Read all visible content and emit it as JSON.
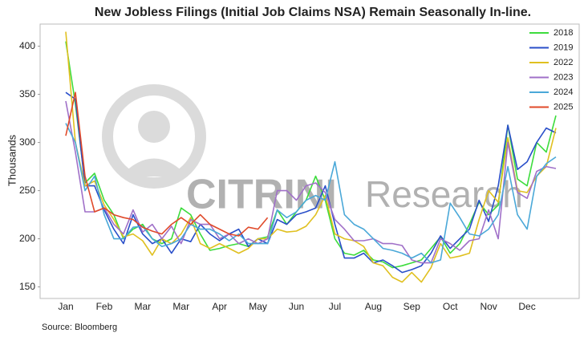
{
  "chart_data": {
    "type": "line",
    "title": "New Jobless Filings (Initial Job Claims NSA) Remain Seasonally In-line.",
    "y_label": "Thousands",
    "source": "Source: Bloomberg",
    "watermark": [
      "CITRINI",
      "Research"
    ],
    "categories": [
      "Jan",
      null,
      null,
      null,
      "Feb",
      null,
      null,
      null,
      "Mar",
      null,
      null,
      null,
      "Mar",
      null,
      null,
      null,
      "Apr",
      null,
      null,
      null,
      "May",
      null,
      null,
      null,
      "Jun",
      null,
      null,
      null,
      "Jul",
      null,
      null,
      null,
      "Aug",
      null,
      null,
      null,
      "Sep",
      null,
      null,
      null,
      "Oct",
      null,
      null,
      null,
      "Nov",
      null,
      null,
      null,
      "Dec",
      null,
      null,
      null
    ],
    "ylim": [
      138,
      423
    ],
    "yticks": [
      150,
      200,
      250,
      300,
      350,
      400
    ],
    "legend": "upper right",
    "series": [
      {
        "name": "2018",
        "color": "#3ddc3d",
        "values": [
          405,
          340,
          258,
          268,
          240,
          225,
          200,
          210,
          215,
          200,
          195,
          200,
          232,
          225,
          205,
          188,
          190,
          193,
          195,
          192,
          200,
          202,
          230,
          215,
          228,
          240,
          265,
          240,
          200,
          185,
          183,
          188,
          178,
          176,
          170,
          172,
          175,
          178,
          190,
          202,
          185,
          195,
          215,
          238,
          225,
          235,
          318,
          262,
          255,
          300,
          290,
          328
        ]
      },
      {
        "name": "2019",
        "color": "#2a4fc9",
        "values": [
          352,
          345,
          255,
          255,
          230,
          210,
          195,
          225,
          205,
          195,
          200,
          185,
          200,
          197,
          215,
          205,
          198,
          205,
          210,
          192,
          200,
          195,
          220,
          215,
          225,
          228,
          232,
          255,
          215,
          180,
          180,
          185,
          175,
          178,
          172,
          165,
          168,
          172,
          185,
          203,
          190,
          200,
          210,
          240,
          218,
          255,
          318,
          272,
          280,
          300,
          315,
          310
        ]
      },
      {
        "name": "2022",
        "color": "#e0c020",
        "values": [
          415,
          300,
          255,
          260,
          235,
          220,
          202,
          205,
          198,
          183,
          200,
          195,
          205,
          222,
          195,
          190,
          195,
          190,
          185,
          190,
          200,
          200,
          210,
          207,
          208,
          213,
          225,
          245,
          205,
          200,
          198,
          192,
          175,
          172,
          160,
          155,
          165,
          155,
          170,
          195,
          180,
          182,
          185,
          220,
          250,
          238,
          305,
          250,
          248,
          265,
          275,
          315
        ]
      },
      {
        "name": "2023",
        "color": "#a070c8",
        "values": [
          343,
          290,
          228,
          228,
          232,
          215,
          205,
          230,
          207,
          215,
          200,
          213,
          195,
          220,
          215,
          215,
          200,
          205,
          195,
          200,
          195,
          200,
          250,
          250,
          240,
          255,
          258,
          248,
          220,
          210,
          198,
          198,
          200,
          195,
          195,
          193,
          178,
          175,
          175,
          200,
          195,
          188,
          198,
          200,
          230,
          200,
          300,
          248,
          242,
          270,
          275,
          273
        ]
      },
      {
        "name": "2024",
        "color": "#4aa8d8",
        "values": [
          320,
          300,
          250,
          265,
          225,
          200,
          200,
          212,
          213,
          200,
          192,
          195,
          200,
          215,
          210,
          210,
          205,
          198,
          205,
          195,
          195,
          195,
          230,
          222,
          228,
          240,
          245,
          240,
          280,
          225,
          215,
          210,
          200,
          190,
          188,
          185,
          180,
          185,
          175,
          178,
          237,
          222,
          205,
          203,
          210,
          225,
          275,
          225,
          210,
          265,
          278,
          285
        ]
      },
      {
        "name": "2025",
        "color": "#e04a2a",
        "values": [
          307,
          352,
          265,
          228,
          232,
          225,
          222,
          220,
          212,
          208,
          205,
          215,
          222,
          215,
          225,
          215,
          210,
          205,
          203,
          212,
          210,
          222,
          null,
          null,
          null,
          null,
          null,
          null,
          null,
          null,
          null,
          null,
          null,
          null,
          null,
          null,
          null,
          null,
          null,
          null,
          null,
          null,
          null,
          null,
          null,
          null,
          null,
          null,
          null,
          null,
          null,
          null
        ]
      }
    ]
  }
}
